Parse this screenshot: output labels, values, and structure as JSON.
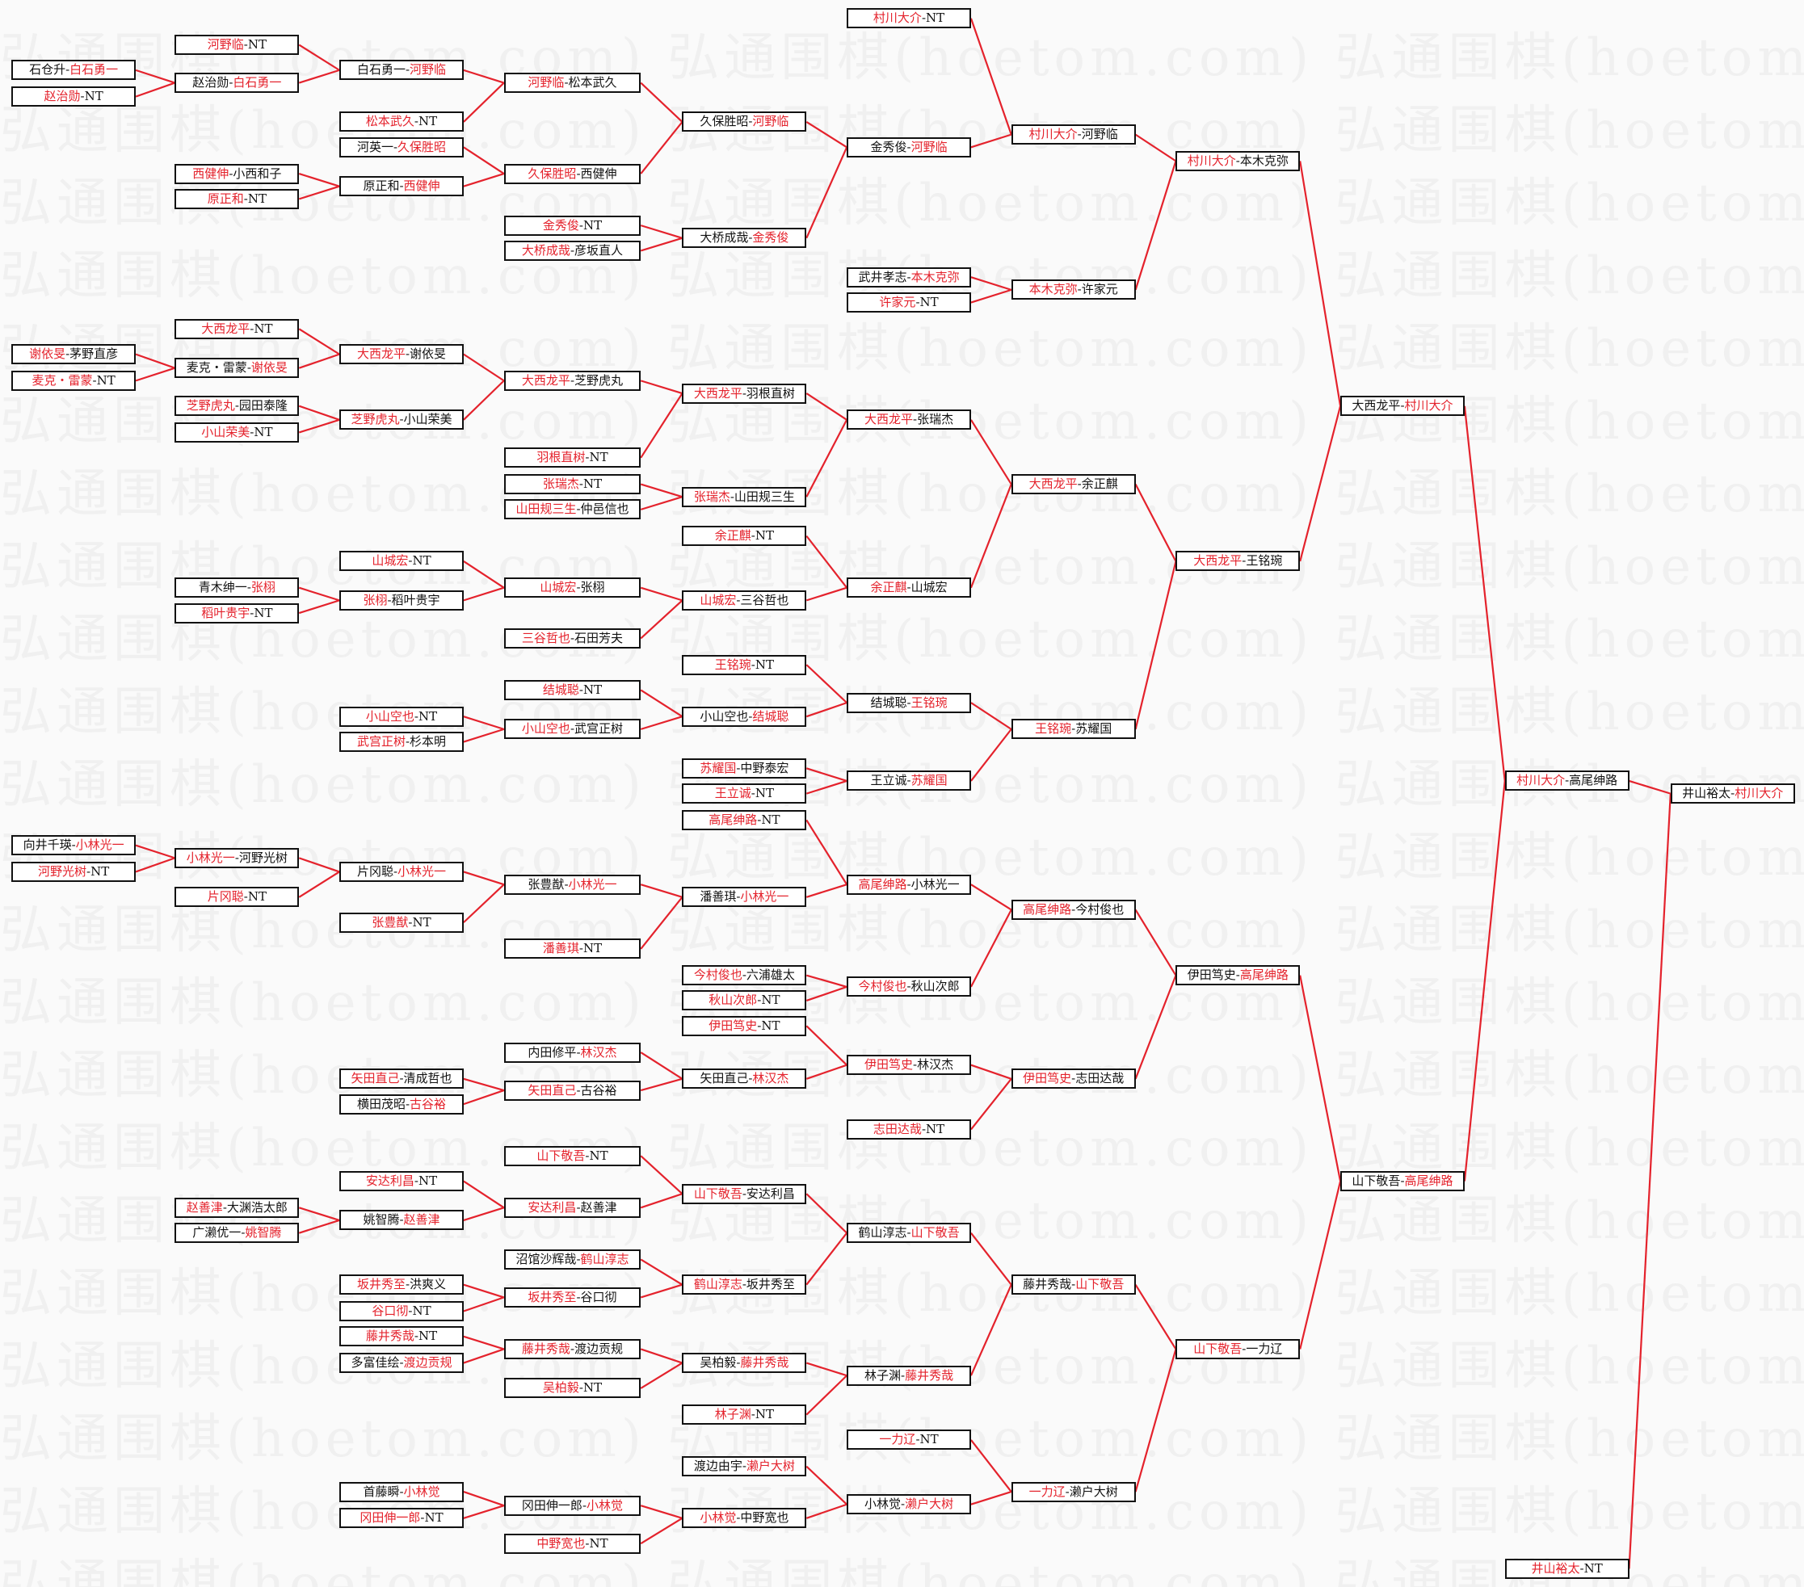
{
  "watermark": "弘通围棋(hoetom.com)",
  "colors": {
    "winner": "#e4222c",
    "connector": "#e4222c",
    "text": "#111111",
    "border": "#111111"
  },
  "separator": "-",
  "boxes": {
    "b1": {
      "a": "石仓升",
      "b": "白石勇一",
      "win": "b"
    },
    "b2": {
      "a": "赵治勋",
      "b": "NT",
      "win": "a"
    },
    "b3": {
      "a": "谢依旻",
      "b": "茅野直彦",
      "win": "a"
    },
    "b4": {
      "a": "麦克・雷蒙",
      "b": "NT",
      "win": "a"
    },
    "b5": {
      "a": "向井千瑛",
      "b": "小林光一",
      "win": "b"
    },
    "b6": {
      "a": "河野光树",
      "b": "NT",
      "win": "a"
    },
    "c1": {
      "a": "河野临",
      "b": "NT",
      "win": "a"
    },
    "c2": {
      "a": "赵治勋",
      "b": "白石勇一",
      "win": "b"
    },
    "c3": {
      "a": "西健伸",
      "b": "小西和子",
      "win": "a"
    },
    "c4": {
      "a": "原正和",
      "b": "NT",
      "win": "a"
    },
    "c5": {
      "a": "大西龙平",
      "b": "NT",
      "win": "a"
    },
    "c6": {
      "a": "麦克・雷蒙",
      "b": "谢依旻",
      "win": "b"
    },
    "c7": {
      "a": "芝野虎丸",
      "b": "园田泰隆",
      "win": "a"
    },
    "c8": {
      "a": "小山荣美",
      "b": "NT",
      "win": "a"
    },
    "c9": {
      "a": "青木绅一",
      "b": "张栩",
      "win": "b"
    },
    "c10": {
      "a": "稻叶贵宇",
      "b": "NT",
      "win": "a"
    },
    "c11": {
      "a": "小林光一",
      "b": "河野光树",
      "win": "a"
    },
    "c12": {
      "a": "片冈聪",
      "b": "NT",
      "win": "a"
    },
    "c13": {
      "a": "赵善津",
      "b": "大渊浩太郎",
      "win": "a"
    },
    "c14": {
      "a": "广濑优一",
      "b": "姚智腾",
      "win": "b"
    },
    "d1": {
      "a": "白石勇一",
      "b": "河野临",
      "win": "b"
    },
    "d2": {
      "a": "松本武久",
      "b": "NT",
      "win": "a"
    },
    "d3": {
      "a": "河英一",
      "b": "久保胜昭",
      "win": "b"
    },
    "d4": {
      "a": "原正和",
      "b": "西健伸",
      "win": "b"
    },
    "d5": {
      "a": "大西龙平",
      "b": "谢依旻",
      "win": "a"
    },
    "d6": {
      "a": "芝野虎丸",
      "b": "小山荣美",
      "win": "a"
    },
    "d7": {
      "a": "山城宏",
      "b": "NT",
      "win": "a"
    },
    "d8": {
      "a": "张栩",
      "b": "稻叶贵宇",
      "win": "a"
    },
    "d9": {
      "a": "小山空也",
      "b": "NT",
      "win": "a"
    },
    "d10": {
      "a": "武宫正树",
      "b": "杉本明",
      "win": "a"
    },
    "d11": {
      "a": "片冈聪",
      "b": "小林光一",
      "win": "b"
    },
    "d12": {
      "a": "张豊猷",
      "b": "NT",
      "win": "a"
    },
    "d13": {
      "a": "矢田直己",
      "b": "清成哲也",
      "win": "a"
    },
    "d14": {
      "a": "横田茂昭",
      "b": "古谷裕",
      "win": "b"
    },
    "d15": {
      "a": "安达利昌",
      "b": "NT",
      "win": "a"
    },
    "d16": {
      "a": "姚智腾",
      "b": "赵善津",
      "win": "b"
    },
    "d17": {
      "a": "坂井秀至",
      "b": "洪爽义",
      "win": "a"
    },
    "d18": {
      "a": "谷口彻",
      "b": "NT",
      "win": "a"
    },
    "d19": {
      "a": "藤井秀哉",
      "b": "NT",
      "win": "a"
    },
    "d20": {
      "a": "多富佳绘",
      "b": "渡边贡规",
      "win": "b"
    },
    "d21": {
      "a": "首藤瞬",
      "b": "小林觉",
      "win": "b"
    },
    "d22": {
      "a": "冈田伸一郎",
      "b": "NT",
      "win": "a"
    },
    "e1": {
      "a": "河野临",
      "b": "松本武久",
      "win": "a"
    },
    "e2": {
      "a": "久保胜昭",
      "b": "西健伸",
      "win": "a"
    },
    "e3": {
      "a": "金秀俊",
      "b": "NT",
      "win": "a"
    },
    "e4": {
      "a": "大桥成哉",
      "b": "彦坂直人",
      "win": "a"
    },
    "e5": {
      "a": "大西龙平",
      "b": "芝野虎丸",
      "win": "a"
    },
    "e6": {
      "a": "羽根直树",
      "b": "NT",
      "win": "a"
    },
    "e7": {
      "a": "张瑞杰",
      "b": "NT",
      "win": "a"
    },
    "e8": {
      "a": "山田规三生",
      "b": "仲邑信也",
      "win": "a"
    },
    "e9": {
      "a": "山城宏",
      "b": "张栩",
      "win": "a"
    },
    "e10": {
      "a": "三谷哲也",
      "b": "石田芳夫",
      "win": "a"
    },
    "e11": {
      "a": "结城聪",
      "b": "NT",
      "win": "a"
    },
    "e12": {
      "a": "小山空也",
      "b": "武宫正树",
      "win": "a"
    },
    "e13": {
      "a": "张豊猷",
      "b": "小林光一",
      "win": "b"
    },
    "e14": {
      "a": "潘善琪",
      "b": "NT",
      "win": "a"
    },
    "e15": {
      "a": "内田修平",
      "b": "林汉杰",
      "win": "b"
    },
    "e16": {
      "a": "矢田直己",
      "b": "古谷裕",
      "win": "a"
    },
    "e17": {
      "a": "山下敬吾",
      "b": "NT",
      "win": "a"
    },
    "e18": {
      "a": "安达利昌",
      "b": "赵善津",
      "win": "a"
    },
    "e19": {
      "a": "沼馆沙辉哉",
      "b": "鹤山淳志",
      "win": "b"
    },
    "e20": {
      "a": "坂井秀至",
      "b": "谷口彻",
      "win": "a"
    },
    "e21": {
      "a": "藤井秀哉",
      "b": "渡边贡规",
      "win": "a"
    },
    "e22": {
      "a": "吴柏毅",
      "b": "NT",
      "win": "a"
    },
    "e23": {
      "a": "冈田伸一郎",
      "b": "小林觉",
      "win": "b"
    },
    "e24": {
      "a": "中野宽也",
      "b": "NT",
      "win": "a"
    },
    "f1": {
      "a": "久保胜昭",
      "b": "河野临",
      "win": "b"
    },
    "f2": {
      "a": "大桥成哉",
      "b": "金秀俊",
      "win": "b"
    },
    "f3": {
      "a": "大西龙平",
      "b": "羽根直树",
      "win": "a"
    },
    "f4": {
      "a": "张瑞杰",
      "b": "山田规三生",
      "win": "a"
    },
    "f5": {
      "a": "余正麒",
      "b": "NT",
      "win": "a"
    },
    "f6": {
      "a": "山城宏",
      "b": "三谷哲也",
      "win": "a"
    },
    "f7": {
      "a": "王铭琬",
      "b": "NT",
      "win": "a"
    },
    "f8": {
      "a": "小山空也",
      "b": "结城聪",
      "win": "b"
    },
    "f9": {
      "a": "苏耀国",
      "b": "中野泰宏",
      "win": "a"
    },
    "f10": {
      "a": "王立诚",
      "b": "NT",
      "win": "a"
    },
    "f11": {
      "a": "高尾绅路",
      "b": "NT",
      "win": "a"
    },
    "f12": {
      "a": "潘善琪",
      "b": "小林光一",
      "win": "b"
    },
    "f13": {
      "a": "今村俊也",
      "b": "六浦雄太",
      "win": "a"
    },
    "f14": {
      "a": "秋山次郎",
      "b": "NT",
      "win": "a"
    },
    "f15": {
      "a": "伊田笃史",
      "b": "NT",
      "win": "a"
    },
    "f16": {
      "a": "矢田直己",
      "b": "林汉杰",
      "win": "b"
    },
    "f17": {
      "a": "山下敬吾",
      "b": "安达利昌",
      "win": "a"
    },
    "f18": {
      "a": "鹤山淳志",
      "b": "坂井秀至",
      "win": "a"
    },
    "f19": {
      "a": "吴柏毅",
      "b": "藤井秀哉",
      "win": "b"
    },
    "f20": {
      "a": "林子渊",
      "b": "NT",
      "win": "a"
    },
    "f21": {
      "a": "渡边由宇",
      "b": "濑户大树",
      "win": "b"
    },
    "f22": {
      "a": "小林觉",
      "b": "中野宽也",
      "win": "a"
    },
    "g1": {
      "a": "村川大介",
      "b": "NT",
      "win": "a"
    },
    "g2": {
      "a": "金秀俊",
      "b": "河野临",
      "win": "b"
    },
    "g3": {
      "a": "武井孝志",
      "b": "本木克弥",
      "win": "b"
    },
    "g4": {
      "a": "许家元",
      "b": "NT",
      "win": "a"
    },
    "g5": {
      "a": "大西龙平",
      "b": "张瑞杰",
      "win": "a"
    },
    "g6": {
      "a": "余正麒",
      "b": "山城宏",
      "win": "a"
    },
    "g7": {
      "a": "结城聪",
      "b": "王铭琬",
      "win": "b"
    },
    "g8": {
      "a": "王立诚",
      "b": "苏耀国",
      "win": "b"
    },
    "g9": {
      "a": "高尾绅路",
      "b": "小林光一",
      "win": "a"
    },
    "g10": {
      "a": "今村俊也",
      "b": "秋山次郎",
      "win": "a"
    },
    "g11": {
      "a": "伊田笃史",
      "b": "林汉杰",
      "win": "a"
    },
    "g12": {
      "a": "志田达哉",
      "b": "NT",
      "win": "a"
    },
    "g13": {
      "a": "鹤山淳志",
      "b": "山下敬吾",
      "win": "b"
    },
    "g14": {
      "a": "林子渊",
      "b": "藤井秀哉",
      "win": "b"
    },
    "g15": {
      "a": "一力辽",
      "b": "NT",
      "win": "a"
    },
    "g16": {
      "a": "小林觉",
      "b": "濑户大树",
      "win": "b"
    },
    "h1": {
      "a": "村川大介",
      "b": "河野临",
      "win": "a"
    },
    "h2": {
      "a": "本木克弥",
      "b": "许家元",
      "win": "a"
    },
    "h3": {
      "a": "大西龙平",
      "b": "余正麒",
      "win": "a"
    },
    "h4": {
      "a": "王铭琬",
      "b": "苏耀国",
      "win": "a"
    },
    "h5": {
      "a": "高尾绅路",
      "b": "今村俊也",
      "win": "a"
    },
    "h6": {
      "a": "伊田笃史",
      "b": "志田达哉",
      "win": "a"
    },
    "h7": {
      "a": "藤井秀哉",
      "b": "山下敬吾",
      "win": "b"
    },
    "h8": {
      "a": "一力辽",
      "b": "濑户大树",
      "win": "a"
    },
    "i1": {
      "a": "村川大介",
      "b": "本木克弥",
      "win": "a"
    },
    "i2": {
      "a": "大西龙平",
      "b": "王铭琬",
      "win": "a"
    },
    "i3": {
      "a": "伊田笃史",
      "b": "高尾绅路",
      "win": "b"
    },
    "i4": {
      "a": "山下敬吾",
      "b": "一力辽",
      "win": "a"
    },
    "j1": {
      "a": "大西龙平",
      "b": "村川大介",
      "win": "b"
    },
    "j2": {
      "a": "山下敬吾",
      "b": "高尾绅路",
      "win": "b"
    },
    "k1": {
      "a": "村川大介",
      "b": "高尾绅路",
      "win": "a"
    },
    "k2": {
      "a": "井山裕太",
      "b": "NT",
      "win": "a"
    },
    "l1": {
      "a": "井山裕太",
      "b": "村川大介",
      "win": "b"
    }
  }
}
